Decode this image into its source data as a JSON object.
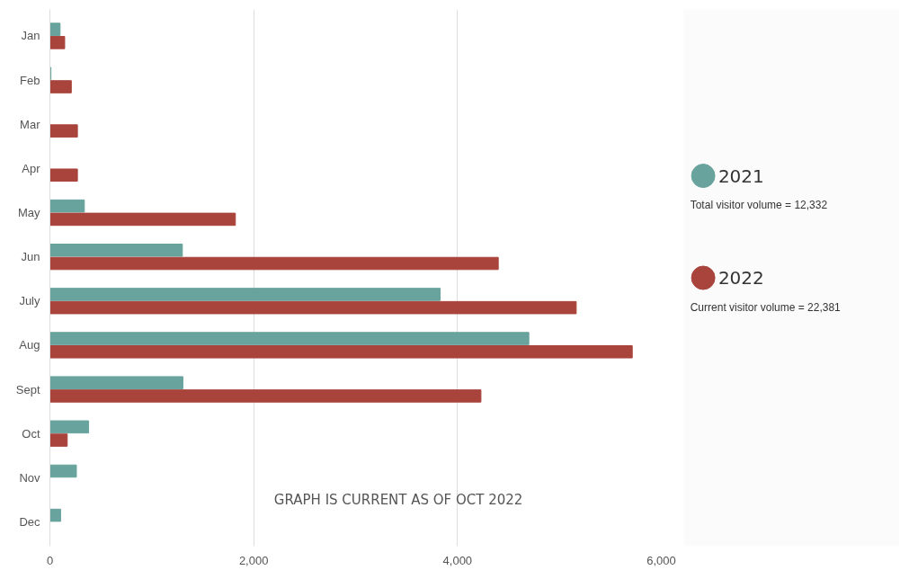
{
  "chart_data": {
    "type": "bar",
    "orientation": "horizontal",
    "categories": [
      "Jan",
      "Feb",
      "Mar",
      "Apr",
      "May",
      "Jun",
      "July",
      "Aug",
      "Sept",
      "Oct",
      "Nov",
      "Dec"
    ],
    "series": [
      {
        "name": "2021",
        "color": "#68a39d",
        "values": [
          100,
          10,
          null,
          null,
          338,
          1300,
          3830,
          4700,
          1305,
          380,
          260,
          105
        ]
      },
      {
        "name": "2022",
        "color": "#a8443b",
        "values": [
          145,
          210,
          270,
          270,
          1820,
          4400,
          5165,
          5715,
          4230,
          170,
          null,
          null
        ]
      }
    ],
    "xlim": [
      0,
      6000
    ],
    "xticks": [
      0,
      {
        "value": 2000,
        "label": "2,000"
      },
      {
        "value": 4000,
        "label": "4,000"
      },
      {
        "value": 6000,
        "label": "6,000"
      }
    ],
    "grid": "x",
    "legend": "right",
    "annotations": [
      "Total visitor volume = 12,332",
      "Current visitor volume   = 22,381",
      "GRAPH IS CURRENT AS OF OCT 2022"
    ]
  }
}
